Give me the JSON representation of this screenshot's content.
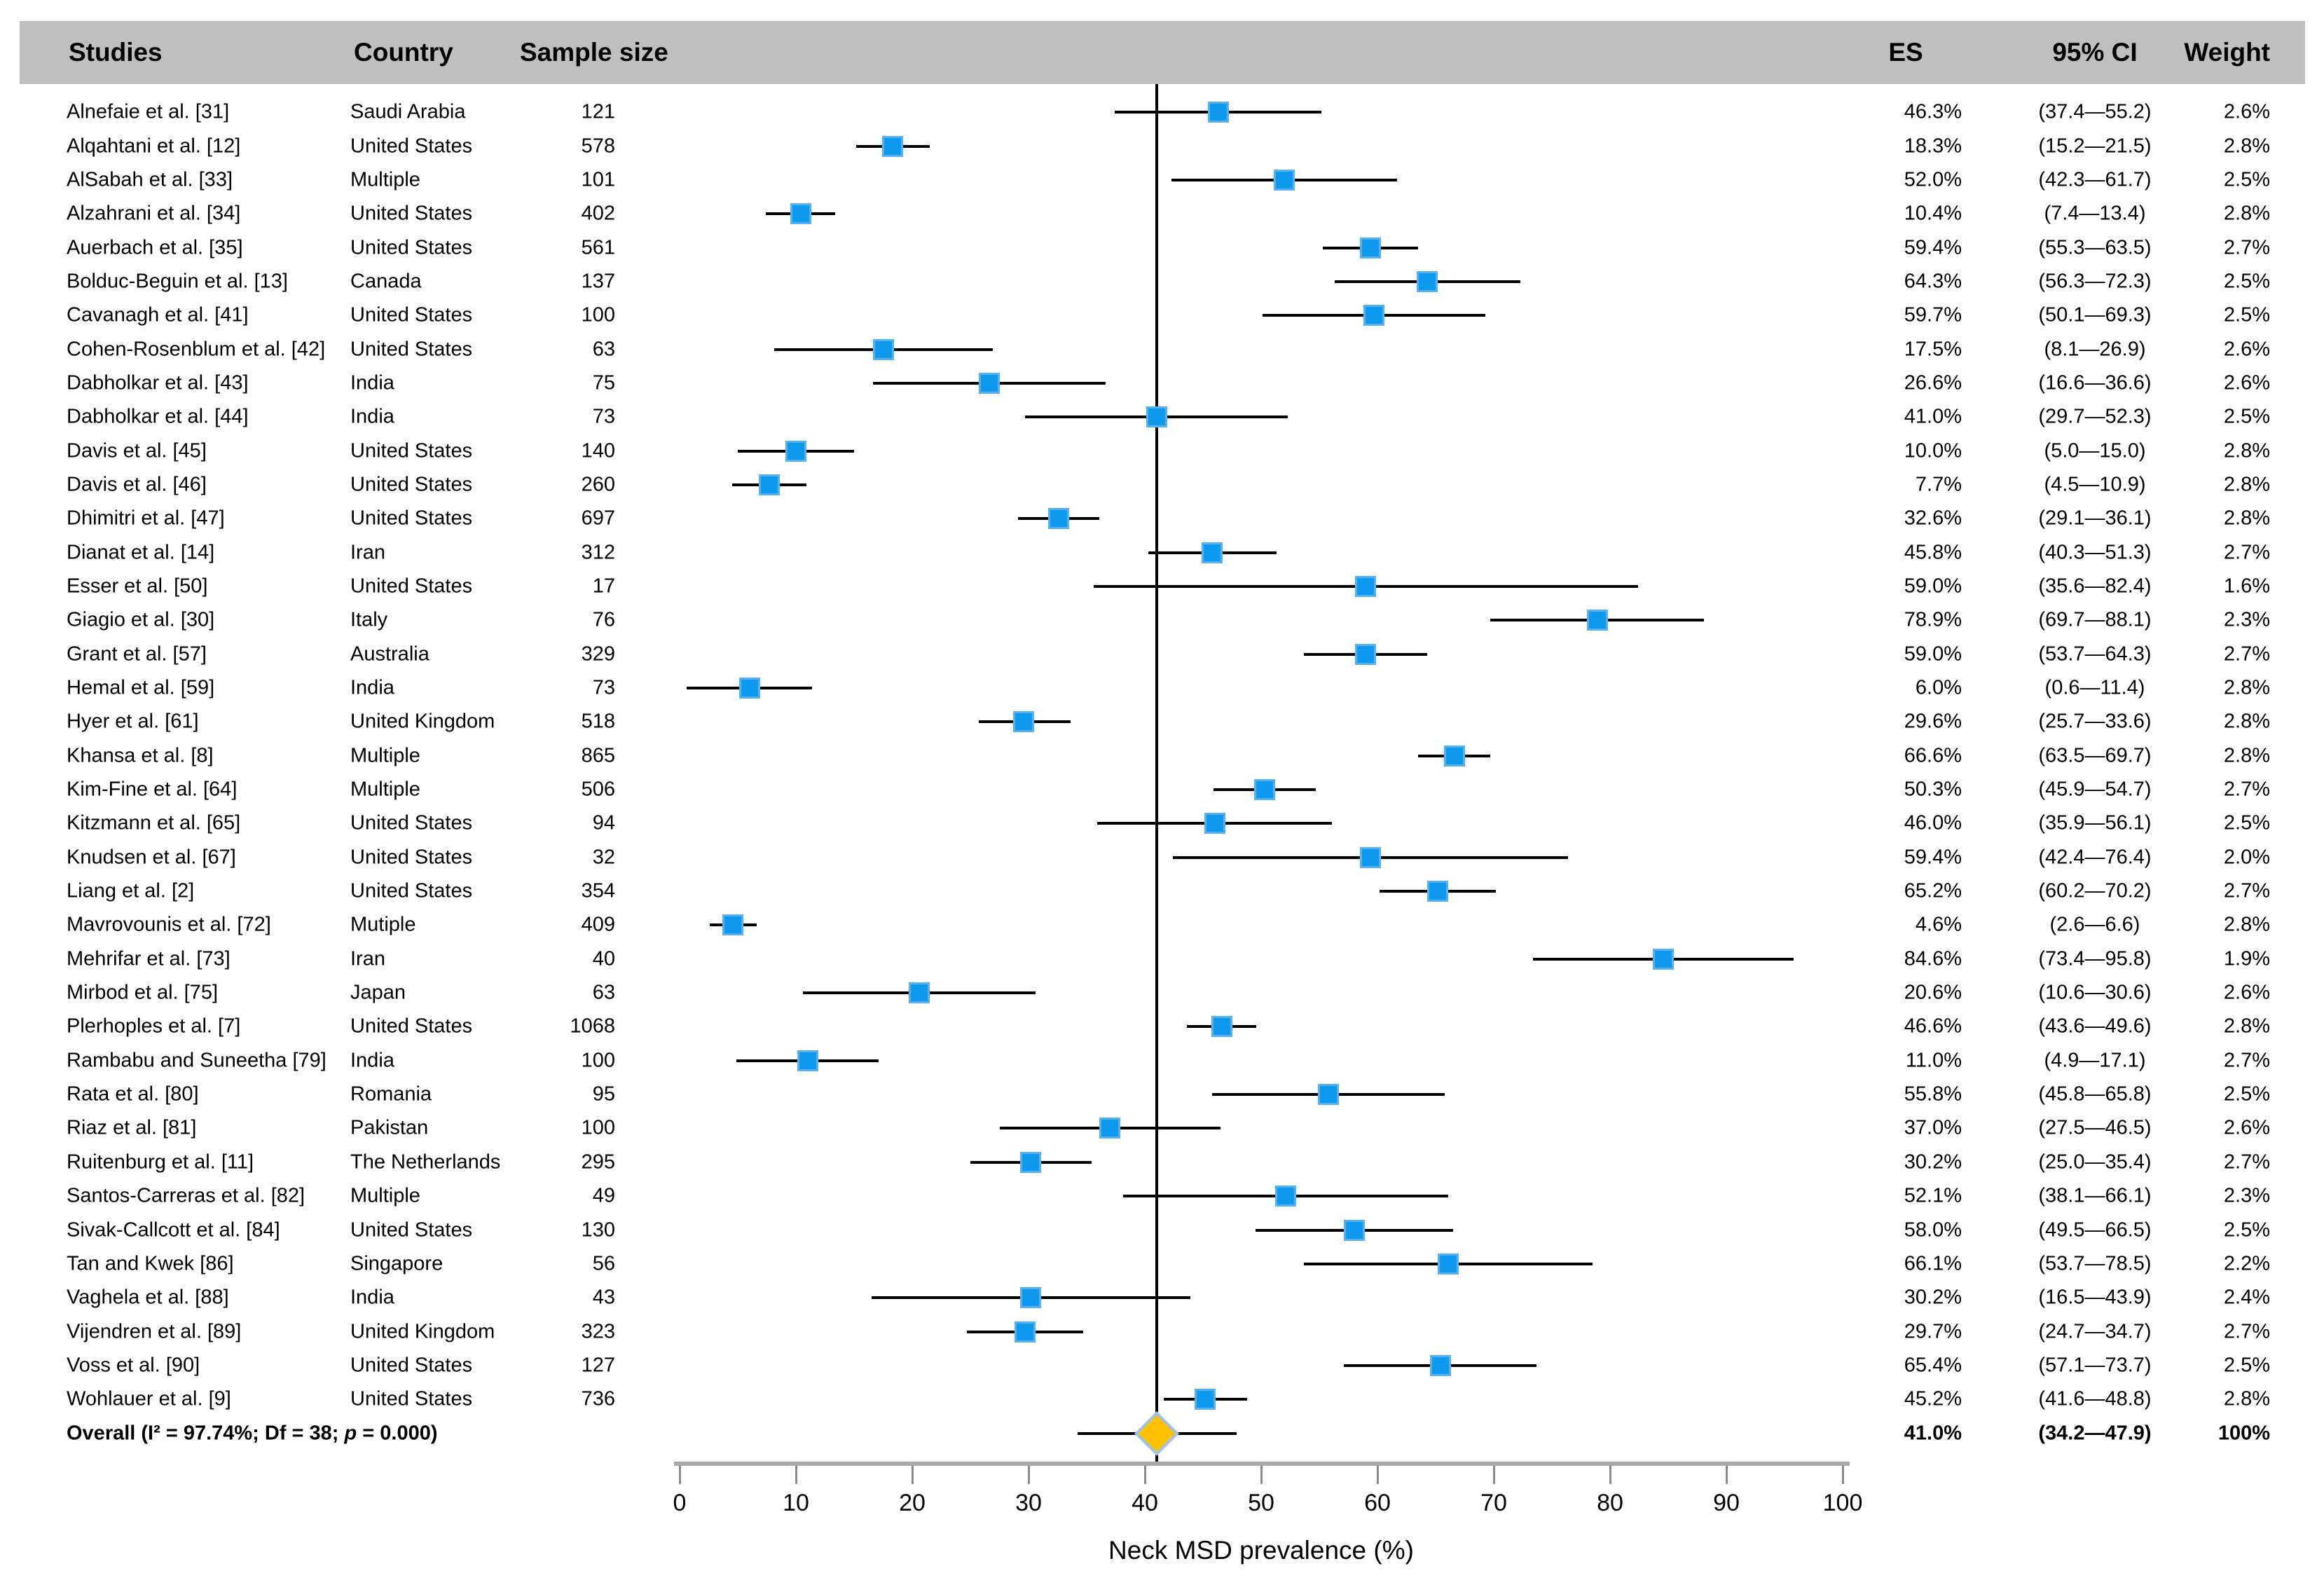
{
  "header": {
    "studies": "Studies",
    "country": "Country",
    "sample_size": "Sample size",
    "es": "ES",
    "ci": "95% CI",
    "weight": "Weight"
  },
  "axis": {
    "title": "Neck MSD prevalence (%)",
    "ticks": [
      0,
      10,
      20,
      30,
      40,
      50,
      60,
      70,
      80,
      90,
      100
    ]
  },
  "colors": {
    "header_band": "#BFBFBF",
    "marker_fill": "#0C99EE",
    "marker_border": "#56B1F2",
    "diamond_fill": "#FFC000",
    "diamond_border": "#9DC3E6",
    "axis_gray": "#A8A8A8",
    "whisker_black": "#000000"
  },
  "chart_data": {
    "type": "scatter",
    "subtype": "forest-plot",
    "xlabel": "Neck MSD prevalence (%)",
    "xlim": [
      0,
      100
    ],
    "ref_line": 41.0,
    "studies": [
      {
        "name": "Alnefaie et al. [31]",
        "country": "Saudi Arabia",
        "n": 121,
        "es": 46.3,
        "lo": 37.4,
        "hi": 55.2,
        "es_label": "46.3%",
        "ci_label": "(37.4—55.2)",
        "weight_label": "2.6%"
      },
      {
        "name": "Alqahtani et al. [12]",
        "country": "United States",
        "n": 578,
        "es": 18.3,
        "lo": 15.2,
        "hi": 21.5,
        "es_label": "18.3%",
        "ci_label": "(15.2—21.5)",
        "weight_label": "2.8%"
      },
      {
        "name": "AlSabah et al. [33]",
        "country": "Multiple",
        "n": 101,
        "es": 52.0,
        "lo": 42.3,
        "hi": 61.7,
        "es_label": "52.0%",
        "ci_label": "(42.3—61.7)",
        "weight_label": "2.5%"
      },
      {
        "name": "Alzahrani et al. [34]",
        "country": "United States",
        "n": 402,
        "es": 10.4,
        "lo": 7.4,
        "hi": 13.4,
        "es_label": "10.4%",
        "ci_label": "(7.4—13.4)",
        "weight_label": "2.8%"
      },
      {
        "name": "Auerbach et al. [35]",
        "country": "United States",
        "n": 561,
        "es": 59.4,
        "lo": 55.3,
        "hi": 63.5,
        "es_label": "59.4%",
        "ci_label": "(55.3—63.5)",
        "weight_label": "2.7%"
      },
      {
        "name": "Bolduc-Beguin et al. [13]",
        "country": "Canada",
        "n": 137,
        "es": 64.3,
        "lo": 56.3,
        "hi": 72.3,
        "es_label": "64.3%",
        "ci_label": "(56.3—72.3)",
        "weight_label": "2.5%"
      },
      {
        "name": "Cavanagh et al. [41]",
        "country": "United States",
        "n": 100,
        "es": 59.7,
        "lo": 50.1,
        "hi": 69.3,
        "es_label": "59.7%",
        "ci_label": "(50.1—69.3)",
        "weight_label": "2.5%"
      },
      {
        "name": "Cohen-Rosenblum et al. [42]",
        "country": "United States",
        "n": 63,
        "es": 17.5,
        "lo": 8.1,
        "hi": 26.9,
        "es_label": "17.5%",
        "ci_label": "(8.1—26.9)",
        "weight_label": "2.6%"
      },
      {
        "name": "Dabholkar et al. [43]",
        "country": "India",
        "n": 75,
        "es": 26.6,
        "lo": 16.6,
        "hi": 36.6,
        "es_label": "26.6%",
        "ci_label": "(16.6—36.6)",
        "weight_label": "2.6%"
      },
      {
        "name": "Dabholkar et al. [44]",
        "country": "India",
        "n": 73,
        "es": 41.0,
        "lo": 29.7,
        "hi": 52.3,
        "es_label": "41.0%",
        "ci_label": "(29.7—52.3)",
        "weight_label": "2.5%"
      },
      {
        "name": "Davis et al. [45]",
        "country": "United States",
        "n": 140,
        "es": 10.0,
        "lo": 5.0,
        "hi": 15.0,
        "es_label": "10.0%",
        "ci_label": "(5.0—15.0)",
        "weight_label": "2.8%"
      },
      {
        "name": "Davis et al. [46]",
        "country": "United States",
        "n": 260,
        "es": 7.7,
        "lo": 4.5,
        "hi": 10.9,
        "es_label": "7.7%",
        "ci_label": "(4.5—10.9)",
        "weight_label": "2.8%"
      },
      {
        "name": "Dhimitri et al. [47]",
        "country": "United States",
        "n": 697,
        "es": 32.6,
        "lo": 29.1,
        "hi": 36.1,
        "es_label": "32.6%",
        "ci_label": "(29.1—36.1)",
        "weight_label": "2.8%"
      },
      {
        "name": "Dianat et al. [14]",
        "country": "Iran",
        "n": 312,
        "es": 45.8,
        "lo": 40.3,
        "hi": 51.3,
        "es_label": "45.8%",
        "ci_label": "(40.3—51.3)",
        "weight_label": "2.7%"
      },
      {
        "name": "Esser et al. [50]",
        "country": "United States",
        "n": 17,
        "es": 59.0,
        "lo": 35.6,
        "hi": 82.4,
        "es_label": "59.0%",
        "ci_label": "(35.6—82.4)",
        "weight_label": "1.6%"
      },
      {
        "name": "Giagio et al. [30]",
        "country": "Italy",
        "n": 76,
        "es": 78.9,
        "lo": 69.7,
        "hi": 88.1,
        "es_label": "78.9%",
        "ci_label": "(69.7—88.1)",
        "weight_label": "2.3%"
      },
      {
        "name": "Grant et al. [57]",
        "country": "Australia",
        "n": 329,
        "es": 59.0,
        "lo": 53.7,
        "hi": 64.3,
        "es_label": "59.0%",
        "ci_label": "(53.7—64.3)",
        "weight_label": "2.7%"
      },
      {
        "name": "Hemal et al. [59]",
        "country": "India",
        "n": 73,
        "es": 6.0,
        "lo": 0.6,
        "hi": 11.4,
        "es_label": "6.0%",
        "ci_label": "(0.6—11.4)",
        "weight_label": "2.8%"
      },
      {
        "name": "Hyer et al. [61]",
        "country": "United Kingdom",
        "n": 518,
        "es": 29.6,
        "lo": 25.7,
        "hi": 33.6,
        "es_label": "29.6%",
        "ci_label": "(25.7—33.6)",
        "weight_label": "2.8%"
      },
      {
        "name": "Khansa et al. [8]",
        "country": "Multiple",
        "n": 865,
        "es": 66.6,
        "lo": 63.5,
        "hi": 69.7,
        "es_label": "66.6%",
        "ci_label": "(63.5—69.7)",
        "weight_label": "2.8%"
      },
      {
        "name": "Kim-Fine et al. [64]",
        "country": "Multiple",
        "n": 506,
        "es": 50.3,
        "lo": 45.9,
        "hi": 54.7,
        "es_label": "50.3%",
        "ci_label": "(45.9—54.7)",
        "weight_label": "2.7%"
      },
      {
        "name": "Kitzmann et al. [65]",
        "country": "United States",
        "n": 94,
        "es": 46.0,
        "lo": 35.9,
        "hi": 56.1,
        "es_label": "46.0%",
        "ci_label": "(35.9—56.1)",
        "weight_label": "2.5%"
      },
      {
        "name": "Knudsen et al. [67]",
        "country": "United States",
        "n": 32,
        "es": 59.4,
        "lo": 42.4,
        "hi": 76.4,
        "es_label": "59.4%",
        "ci_label": "(42.4—76.4)",
        "weight_label": "2.0%"
      },
      {
        "name": "Liang et al. [2]",
        "country": "United States",
        "n": 354,
        "es": 65.2,
        "lo": 60.2,
        "hi": 70.2,
        "es_label": "65.2%",
        "ci_label": "(60.2—70.2)",
        "weight_label": "2.7%"
      },
      {
        "name": "Mavrovounis et al. [72]",
        "country": "Mutiple",
        "n": 409,
        "es": 4.6,
        "lo": 2.6,
        "hi": 6.6,
        "es_label": "4.6%",
        "ci_label": "(2.6—6.6)",
        "weight_label": "2.8%"
      },
      {
        "name": "Mehrifar et al. [73]",
        "country": "Iran",
        "n": 40,
        "es": 84.6,
        "lo": 73.4,
        "hi": 95.8,
        "es_label": "84.6%",
        "ci_label": "(73.4—95.8)",
        "weight_label": "1.9%"
      },
      {
        "name": "Mirbod et al. [75]",
        "country": "Japan",
        "n": 63,
        "es": 20.6,
        "lo": 10.6,
        "hi": 30.6,
        "es_label": "20.6%",
        "ci_label": "(10.6—30.6)",
        "weight_label": "2.6%"
      },
      {
        "name": "Plerhoples et al. [7]",
        "country": "United States",
        "n": 1068,
        "es": 46.6,
        "lo": 43.6,
        "hi": 49.6,
        "es_label": "46.6%",
        "ci_label": "(43.6—49.6)",
        "weight_label": "2.8%"
      },
      {
        "name": "Rambabu and Suneetha [79]",
        "country": "India",
        "n": 100,
        "es": 11.0,
        "lo": 4.9,
        "hi": 17.1,
        "es_label": "11.0%",
        "ci_label": "(4.9—17.1)",
        "weight_label": "2.7%"
      },
      {
        "name": "Rata et al. [80]",
        "country": "Romania",
        "n": 95,
        "es": 55.8,
        "lo": 45.8,
        "hi": 65.8,
        "es_label": "55.8%",
        "ci_label": "(45.8—65.8)",
        "weight_label": "2.5%"
      },
      {
        "name": "Riaz et al. [81]",
        "country": "Pakistan",
        "n": 100,
        "es": 37.0,
        "lo": 27.5,
        "hi": 46.5,
        "es_label": "37.0%",
        "ci_label": "(27.5—46.5)",
        "weight_label": "2.6%"
      },
      {
        "name": "Ruitenburg et al. [11]",
        "country": "The Netherlands",
        "n": 295,
        "es": 30.2,
        "lo": 25.0,
        "hi": 35.4,
        "es_label": "30.2%",
        "ci_label": "(25.0—35.4)",
        "weight_label": "2.7%"
      },
      {
        "name": "Santos-Carreras et al. [82]",
        "country": "Multiple",
        "n": 49,
        "es": 52.1,
        "lo": 38.1,
        "hi": 66.1,
        "es_label": "52.1%",
        "ci_label": "(38.1—66.1)",
        "weight_label": "2.3%"
      },
      {
        "name": "Sivak-Callcott et al. [84]",
        "country": "United States",
        "n": 130,
        "es": 58.0,
        "lo": 49.5,
        "hi": 66.5,
        "es_label": "58.0%",
        "ci_label": "(49.5—66.5)",
        "weight_label": "2.5%"
      },
      {
        "name": "Tan and Kwek [86]",
        "country": "Singapore",
        "n": 56,
        "es": 66.1,
        "lo": 53.7,
        "hi": 78.5,
        "es_label": "66.1%",
        "ci_label": "(53.7—78.5)",
        "weight_label": "2.2%"
      },
      {
        "name": "Vaghela et al. [88]",
        "country": "India",
        "n": 43,
        "es": 30.2,
        "lo": 16.5,
        "hi": 43.9,
        "es_label": "30.2%",
        "ci_label": "(16.5—43.9)",
        "weight_label": "2.4%"
      },
      {
        "name": "Vijendren et al. [89]",
        "country": "United Kingdom",
        "n": 323,
        "es": 29.7,
        "lo": 24.7,
        "hi": 34.7,
        "es_label": "29.7%",
        "ci_label": "(24.7—34.7)",
        "weight_label": "2.7%"
      },
      {
        "name": "Voss et al. [90]",
        "country": "United States",
        "n": 127,
        "es": 65.4,
        "lo": 57.1,
        "hi": 73.7,
        "es_label": "65.4%",
        "ci_label": "(57.1—73.7)",
        "weight_label": "2.5%"
      },
      {
        "name": "Wohlauer et al. [9]",
        "country": "United States",
        "n": 736,
        "es": 45.2,
        "lo": 41.6,
        "hi": 48.8,
        "es_label": "45.2%",
        "ci_label": "(41.6—48.8)",
        "weight_label": "2.8%"
      }
    ],
    "overall": {
      "label_pre": "Overall (I² = 97.74%; Df = 38; ",
      "label_p_italic": "p",
      "label_post": " = 0.000)",
      "es": 41.0,
      "lo": 34.2,
      "hi": 47.9,
      "es_label": "41.0%",
      "ci_label": "(34.2—47.9)",
      "weight_label": "100%"
    }
  }
}
